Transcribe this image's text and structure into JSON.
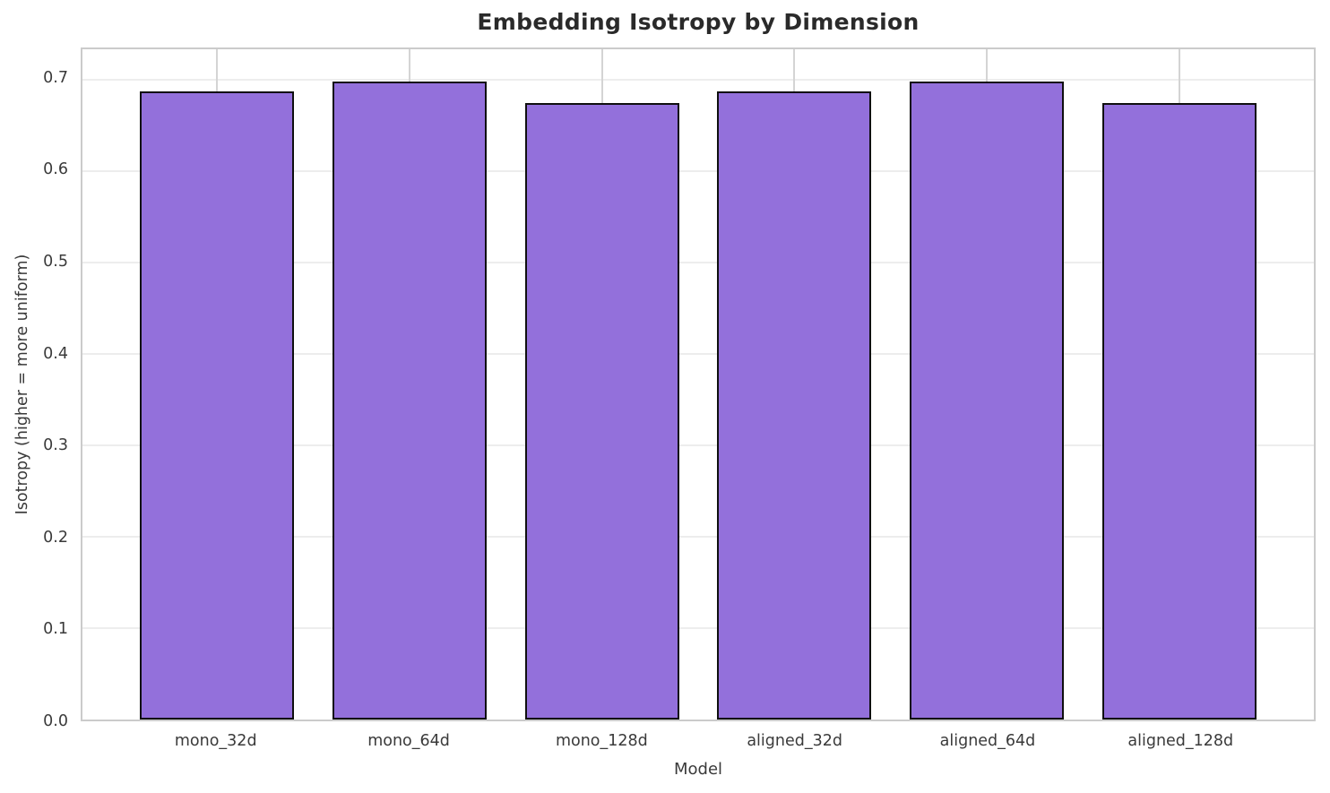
{
  "chart_data": {
    "type": "bar",
    "title": "Embedding Isotropy by Dimension",
    "xlabel": "Model",
    "ylabel": "Isotropy (higher = more uniform)",
    "categories": [
      "mono_32d",
      "mono_64d",
      "mono_128d",
      "aligned_32d",
      "aligned_64d",
      "aligned_128d"
    ],
    "values": [
      0.687,
      0.698,
      0.674,
      0.687,
      0.698,
      0.674
    ],
    "ylim": [
      0,
      0.733
    ],
    "yticks": [
      0.0,
      0.1,
      0.2,
      0.3,
      0.4,
      0.5,
      0.6,
      0.7
    ],
    "grid": true,
    "legend": "none",
    "bar_color": "#9370DB",
    "bar_edge_color": "#0f0f0f",
    "background": "#ffffff"
  }
}
